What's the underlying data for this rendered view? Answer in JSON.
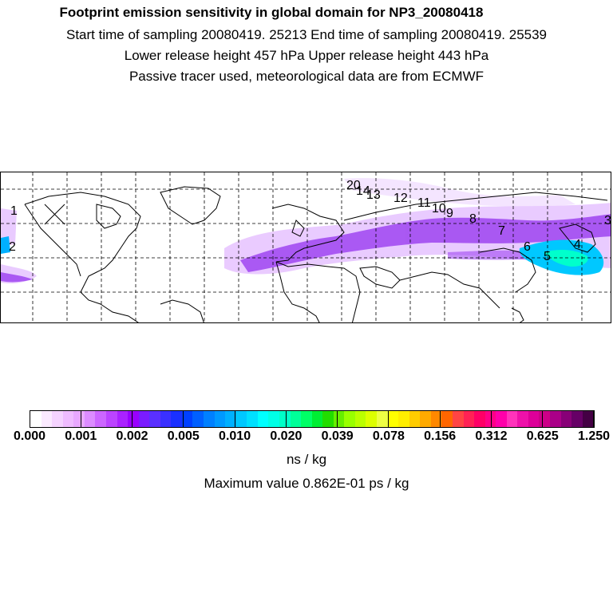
{
  "header": {
    "title": "Footprint emission sensitivity in global domain for NP3_20080418",
    "sampling_line": "Start time of sampling 20080419. 25213      End time of sampling 20080419. 25539",
    "release_line": "Lower release height  457 hPa       Upper release height  443 hPa",
    "tracer_line": "Passive tracer used, meteorological data are from ECMWF"
  },
  "map": {
    "plume_color": "#9a3cf0",
    "plume_light": "#e6c2ff",
    "high_color": "#00e5e5",
    "coast_color": "#000000",
    "grid_color": "#000000",
    "point_labels": [
      {
        "label": "1"
      },
      {
        "label": "2"
      },
      {
        "label": "3"
      },
      {
        "label": "4"
      },
      {
        "label": "5"
      },
      {
        "label": "6"
      },
      {
        "label": "7"
      },
      {
        "label": "8"
      },
      {
        "label": "9"
      },
      {
        "label": "10"
      },
      {
        "label": "11"
      },
      {
        "label": "12"
      },
      {
        "label": "13"
      },
      {
        "label": "14"
      },
      {
        "label": "20"
      }
    ]
  },
  "colorbar": {
    "colors": [
      "#ffffff",
      "#fbeaff",
      "#f5d3ff",
      "#efbcff",
      "#e8a8ff",
      "#dc8cff",
      "#cc66ff",
      "#bb44ff",
      "#aa22ff",
      "#9900ff",
      "#7a1cff",
      "#5a30ff",
      "#3a30ff",
      "#1a30ff",
      "#0040ff",
      "#0060ff",
      "#0080ff",
      "#0099ff",
      "#00b0ff",
      "#00c8ff",
      "#00e0ff",
      "#00ffff",
      "#00ffe6",
      "#00ffc8",
      "#00ff99",
      "#00ff66",
      "#00ee33",
      "#22dd00",
      "#66ee00",
      "#99ff00",
      "#bbff00",
      "#ddff00",
      "#eeff44",
      "#ffff00",
      "#ffee00",
      "#ffcc00",
      "#ffaa00",
      "#ff8800",
      "#ff6600",
      "#ff4444",
      "#ff2255",
      "#ff0066",
      "#ff0088",
      "#ff00aa",
      "#ff33bb",
      "#ee11aa",
      "#dd0099",
      "#cc0088",
      "#aa0088",
      "#880077",
      "#660066",
      "#440044"
    ],
    "tick_labels": [
      "0.000",
      "0.001",
      "0.002",
      "0.005",
      "0.010",
      "0.020",
      "0.039",
      "0.078",
      "0.156",
      "0.312",
      "0.625",
      "1.250"
    ],
    "unit": "ns / kg",
    "max_value": "Maximum value  0.862E-01 ps / kg"
  }
}
